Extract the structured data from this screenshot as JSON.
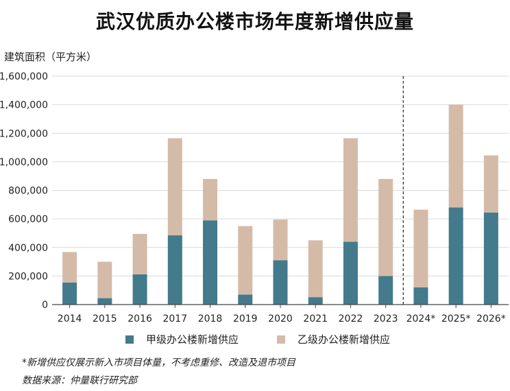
{
  "title": "武汉优质办公楼市场年度新增供应量",
  "unit_label": "建筑面积（平方米）",
  "colors": {
    "grade_a": "#437A8C",
    "grade_b": "#D4BBA8",
    "grid": "#d9d9d9",
    "axis": "#444444"
  },
  "chart_data": {
    "type": "bar",
    "stacked": true,
    "categories": [
      "2014",
      "2015",
      "2016",
      "2017",
      "2018",
      "2019",
      "2020",
      "2021",
      "2022",
      "2023",
      "2024*",
      "2025*",
      "2026*"
    ],
    "series": [
      {
        "name": "甲级办公楼新增供应",
        "values": [
          155000,
          45000,
          212000,
          485000,
          590000,
          70000,
          310000,
          52000,
          440000,
          200000,
          120000,
          680000,
          645000
        ]
      },
      {
        "name": "乙级办公楼新增供应",
        "values": [
          213000,
          255000,
          283000,
          680000,
          290000,
          480000,
          285000,
          398000,
          725000,
          680000,
          545000,
          720000,
          400000
        ]
      }
    ],
    "ylim": [
      0,
      1600000
    ],
    "yticks": [
      0,
      200000,
      400000,
      600000,
      800000,
      1000000,
      1200000,
      1400000,
      1600000
    ],
    "ytick_labels": [
      "0",
      "200,000",
      "400,000",
      "600,000",
      "800,000",
      "1,000,000",
      "1,200,000",
      "1,400,000",
      "1,600,000"
    ],
    "forecast_divider_after": "2023",
    "grid": true,
    "legend_position": "bottom"
  },
  "notes": {
    "line1": "*新增供应仅展示新入市项目体量，不考虑重修、改造及退市项目",
    "line2": "数据来源：仲量联行研究部"
  }
}
